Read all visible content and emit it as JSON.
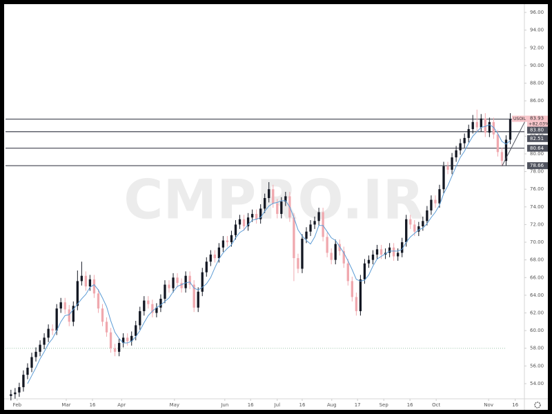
{
  "chart_data": {
    "type": "candlestick",
    "symbol": "USOIL",
    "watermark": "CMPRO.IR",
    "up_color": "#131722",
    "down_color": "#f0a8ae",
    "ma_color": "#5b9bd5",
    "xlim": [
      -1.3,
      123.4
    ],
    "xticks": [
      {
        "value": 1.5,
        "label": "Feb"
      },
      {
        "value": 13.3,
        "label": "Mar"
      },
      {
        "value": 19.6,
        "label": "16"
      },
      {
        "value": 26.6,
        "label": "Apr"
      },
      {
        "value": 39.3,
        "label": "May"
      },
      {
        "value": 51.4,
        "label": "Jun"
      },
      {
        "value": 57.6,
        "label": "16"
      },
      {
        "value": 64.0,
        "label": "Jul"
      },
      {
        "value": 70.0,
        "label": "16"
      },
      {
        "value": 77.1,
        "label": "Aug"
      },
      {
        "value": 83.3,
        "label": "17"
      },
      {
        "value": 89.6,
        "label": "Sep"
      },
      {
        "value": 95.9,
        "label": "16"
      },
      {
        "value": 102.2,
        "label": "Oct"
      },
      {
        "value": 114.8,
        "label": "Nov"
      },
      {
        "value": 121.2,
        "label": "16"
      }
    ],
    "ylim": [
      52.28,
      96.94
    ],
    "yticks": [
      {
        "value": 54,
        "label": "54.00"
      },
      {
        "value": 56,
        "label": "56.00"
      },
      {
        "value": 58,
        "label": "58.00"
      },
      {
        "value": 60,
        "label": "60.00"
      },
      {
        "value": 62,
        "label": "62.00"
      },
      {
        "value": 64,
        "label": "64.00"
      },
      {
        "value": 66,
        "label": "66.00"
      },
      {
        "value": 68,
        "label": "68.00"
      },
      {
        "value": 70,
        "label": "70.00"
      },
      {
        "value": 72,
        "label": "72.00"
      },
      {
        "value": 74,
        "label": "74.00"
      },
      {
        "value": 76,
        "label": "76.00"
      },
      {
        "value": 78,
        "label": "78.00"
      },
      {
        "value": 80,
        "label": "80.00"
      },
      {
        "value": 82,
        "label": "82.00"
      },
      {
        "value": 84,
        "label": "84.00"
      },
      {
        "value": 86,
        "label": "86.00"
      },
      {
        "value": 88,
        "label": "88.00"
      },
      {
        "value": 90,
        "label": "90.00"
      },
      {
        "value": 92,
        "label": "92.00"
      },
      {
        "value": 94,
        "label": "94.00"
      },
      {
        "value": 96,
        "label": "96.00"
      }
    ],
    "price": {
      "value": 83.93,
      "label": "83.93"
    },
    "change": "+82.03%",
    "extra_label": {
      "value": 83.8,
      "label": "83.80"
    },
    "levels": [
      {
        "value": 82.51,
        "label": "82.51"
      },
      {
        "value": 80.64,
        "label": "80.64"
      },
      {
        "value": 78.66,
        "label": "78.66"
      }
    ],
    "dotted_level": 58,
    "trend_line": {
      "x": [
        118,
        124
      ],
      "y": [
        78.6,
        84.1
      ]
    },
    "ohlc": [
      [
        52.6,
        53.3,
        52.1,
        52.8
      ],
      [
        52.8,
        53.5,
        52.3,
        53.0
      ],
      [
        53.0,
        54.1,
        52.5,
        53.6
      ],
      [
        53.6,
        55.5,
        53.1,
        55.0
      ],
      [
        55.0,
        56.3,
        54.5,
        55.8
      ],
      [
        55.8,
        57.5,
        55.3,
        57.0
      ],
      [
        57.0,
        58.1,
        56.5,
        57.6
      ],
      [
        57.6,
        58.9,
        57.1,
        58.4
      ],
      [
        58.4,
        59.7,
        57.9,
        59.2
      ],
      [
        59.2,
        60.7,
        58.7,
        60.2
      ],
      [
        60.2,
        60.7,
        59.5,
        60.0
      ],
      [
        60.0,
        63.0,
        59.5,
        62.5
      ],
      [
        62.5,
        63.7,
        62.0,
        63.2
      ],
      [
        63.2,
        63.7,
        61.9,
        62.4
      ],
      [
        62.4,
        62.9,
        60.5,
        61.0
      ],
      [
        61.0,
        63.3,
        60.5,
        62.8
      ],
      [
        62.8,
        66.8,
        62.3,
        65.6
      ],
      [
        65.6,
        67.8,
        65.1,
        66.2
      ],
      [
        66.2,
        66.7,
        64.5,
        65.0
      ],
      [
        65.0,
        66.3,
        64.5,
        65.8
      ],
      [
        65.8,
        66.3,
        63.7,
        64.2
      ],
      [
        64.2,
        64.7,
        62.0,
        62.5
      ],
      [
        62.5,
        63.0,
        60.5,
        61.0
      ],
      [
        61.0,
        61.5,
        59.3,
        59.8
      ],
      [
        59.8,
        60.3,
        57.5,
        58.0
      ],
      [
        58.0,
        58.5,
        57.1,
        57.6
      ],
      [
        57.6,
        59.1,
        57.1,
        58.6
      ],
      [
        58.6,
        59.7,
        58.1,
        59.2
      ],
      [
        59.2,
        59.7,
        58.3,
        58.8
      ],
      [
        58.8,
        59.9,
        58.3,
        59.4
      ],
      [
        59.4,
        61.1,
        58.9,
        60.6
      ],
      [
        60.6,
        62.7,
        60.1,
        62.2
      ],
      [
        62.2,
        63.9,
        61.7,
        63.4
      ],
      [
        63.4,
        63.9,
        62.5,
        63.0
      ],
      [
        63.0,
        63.5,
        61.5,
        62.0
      ],
      [
        62.0,
        63.1,
        61.5,
        62.6
      ],
      [
        62.6,
        64.1,
        62.1,
        63.6
      ],
      [
        63.6,
        65.7,
        63.1,
        65.2
      ],
      [
        65.2,
        65.7,
        64.3,
        64.8
      ],
      [
        64.8,
        66.5,
        64.3,
        66.0
      ],
      [
        66.0,
        66.5,
        64.9,
        65.4
      ],
      [
        65.4,
        65.9,
        64.3,
        64.8
      ],
      [
        64.8,
        66.7,
        64.3,
        66.2
      ],
      [
        66.2,
        66.7,
        64.7,
        65.2
      ],
      [
        65.2,
        65.7,
        62.1,
        62.6
      ],
      [
        62.6,
        64.9,
        62.1,
        64.4
      ],
      [
        64.4,
        67.1,
        63.9,
        66.6
      ],
      [
        66.6,
        68.3,
        66.1,
        67.8
      ],
      [
        67.8,
        69.1,
        67.3,
        68.6
      ],
      [
        68.6,
        69.1,
        67.7,
        68.2
      ],
      [
        68.2,
        69.9,
        67.7,
        69.4
      ],
      [
        69.4,
        70.7,
        68.9,
        70.2
      ],
      [
        70.2,
        70.7,
        69.5,
        70.0
      ],
      [
        70.0,
        71.3,
        69.5,
        70.8
      ],
      [
        70.8,
        72.5,
        70.3,
        72.0
      ],
      [
        72.0,
        73.1,
        71.5,
        72.6
      ],
      [
        72.6,
        73.1,
        71.3,
        71.8
      ],
      [
        71.8,
        73.3,
        71.3,
        72.8
      ],
      [
        72.8,
        73.7,
        72.3,
        73.2
      ],
      [
        73.2,
        73.7,
        72.1,
        72.6
      ],
      [
        72.6,
        74.3,
        72.1,
        73.8
      ],
      [
        73.8,
        75.5,
        73.3,
        75.0
      ],
      [
        75.0,
        76.8,
        74.5,
        76.0
      ],
      [
        76.0,
        76.5,
        73.9,
        74.4
      ],
      [
        74.4,
        74.9,
        72.7,
        73.2
      ],
      [
        73.2,
        75.1,
        72.7,
        74.6
      ],
      [
        74.6,
        75.7,
        74.1,
        75.2
      ],
      [
        75.2,
        75.7,
        72.3,
        72.8
      ],
      [
        72.8,
        73.3,
        65.6,
        68.2
      ],
      [
        68.2,
        68.7,
        66.5,
        67.0
      ],
      [
        67.0,
        70.9,
        66.5,
        70.4
      ],
      [
        70.4,
        71.7,
        69.9,
        71.2
      ],
      [
        71.2,
        72.5,
        70.7,
        72.0
      ],
      [
        72.0,
        72.9,
        71.5,
        72.4
      ],
      [
        72.4,
        73.9,
        71.9,
        73.4
      ],
      [
        73.4,
        73.9,
        70.1,
        70.6
      ],
      [
        70.6,
        71.1,
        68.3,
        68.8
      ],
      [
        68.8,
        69.3,
        67.5,
        68.0
      ],
      [
        68.0,
        70.3,
        67.5,
        69.8
      ],
      [
        69.8,
        70.3,
        68.5,
        69.0
      ],
      [
        69.0,
        69.5,
        67.1,
        67.6
      ],
      [
        67.6,
        68.1,
        65.1,
        65.6
      ],
      [
        65.6,
        66.1,
        63.3,
        63.8
      ],
      [
        63.8,
        64.3,
        61.7,
        62.2
      ],
      [
        62.2,
        66.3,
        61.7,
        65.8
      ],
      [
        65.8,
        68.1,
        65.3,
        67.6
      ],
      [
        67.6,
        68.5,
        67.1,
        68.0
      ],
      [
        68.0,
        69.1,
        67.5,
        68.6
      ],
      [
        68.6,
        69.7,
        68.1,
        69.2
      ],
      [
        69.2,
        69.7,
        68.1,
        68.6
      ],
      [
        68.6,
        69.3,
        68.1,
        68.8
      ],
      [
        68.8,
        69.9,
        68.3,
        69.4
      ],
      [
        69.4,
        69.9,
        67.9,
        68.4
      ],
      [
        68.4,
        69.3,
        67.9,
        68.8
      ],
      [
        68.8,
        70.5,
        68.3,
        70.0
      ],
      [
        70.0,
        73.1,
        69.5,
        72.6
      ],
      [
        72.6,
        73.1,
        71.5,
        72.0
      ],
      [
        72.0,
        72.5,
        70.7,
        71.2
      ],
      [
        71.2,
        72.3,
        70.7,
        71.8
      ],
      [
        71.8,
        72.9,
        71.3,
        72.4
      ],
      [
        72.4,
        74.1,
        71.9,
        73.6
      ],
      [
        73.6,
        75.3,
        73.1,
        74.8
      ],
      [
        74.8,
        75.3,
        73.9,
        74.4
      ],
      [
        74.4,
        76.5,
        73.9,
        76.0
      ],
      [
        76.0,
        79.1,
        75.5,
        78.6
      ],
      [
        78.6,
        79.1,
        77.7,
        78.2
      ],
      [
        78.2,
        80.1,
        77.7,
        79.6
      ],
      [
        79.6,
        80.9,
        79.1,
        80.4
      ],
      [
        80.4,
        81.7,
        79.9,
        81.2
      ],
      [
        81.2,
        82.3,
        80.7,
        81.8
      ],
      [
        81.8,
        83.3,
        81.3,
        82.8
      ],
      [
        82.8,
        84.4,
        82.3,
        83.6
      ],
      [
        83.6,
        85.0,
        82.5,
        83.0
      ],
      [
        83.0,
        84.5,
        82.5,
        84.0
      ],
      [
        84.0,
        84.6,
        81.9,
        82.4
      ],
      [
        82.4,
        84.1,
        81.9,
        83.6
      ],
      [
        83.6,
        84.1,
        81.7,
        82.2
      ],
      [
        82.2,
        82.7,
        79.7,
        80.2
      ],
      [
        80.2,
        80.7,
        78.6,
        79.2
      ],
      [
        79.2,
        82.1,
        78.7,
        81.6
      ],
      [
        81.6,
        84.6,
        81.1,
        83.93
      ]
    ],
    "ma": [
      null,
      null,
      null,
      null,
      54.0,
      54.9,
      55.8,
      56.8,
      57.6,
      58.5,
      59.1,
      60.0,
      61.0,
      61.7,
      61.8,
      62.4,
      63.0,
      63.6,
      64.1,
      64.9,
      65.2,
      64.6,
      63.7,
      62.7,
      61.1,
      59.8,
      59.1,
      58.6,
      58.6,
      58.8,
      59.3,
      60.0,
      60.9,
      61.7,
      62.2,
      62.6,
      62.9,
      63.3,
      63.7,
      64.4,
      65.0,
      65.2,
      65.4,
      65.5,
      64.8,
      64.6,
      64.9,
      65.3,
      66.0,
      67.1,
      68.1,
      68.8,
      69.3,
      69.7,
      70.5,
      71.1,
      71.4,
      72.0,
      72.5,
      72.6,
      72.8,
      73.5,
      74.1,
      74.4,
      74.5,
      74.7,
      74.7,
      74.0,
      72.8,
      71.4,
      70.7,
      70.2,
      69.8,
      70.6,
      71.9,
      71.9,
      71.2,
      70.5,
      70.2,
      69.5,
      68.8,
      67.9,
      66.9,
      65.8,
      65.6,
      65.7,
      66.3,
      67.3,
      68.1,
      68.4,
      68.7,
      69.0,
      69.0,
      69.0,
      69.2,
      70.0,
      70.6,
      71.0,
      71.4,
      71.6,
      72.1,
      72.8,
      73.4,
      74.2,
      75.5,
      76.4,
      77.5,
      78.6,
      79.6,
      80.3,
      81.2,
      82.0,
      82.5,
      83.0,
      83.1,
      83.3,
      83.0,
      82.3,
      81.4,
      81.1,
      81.5
    ]
  }
}
